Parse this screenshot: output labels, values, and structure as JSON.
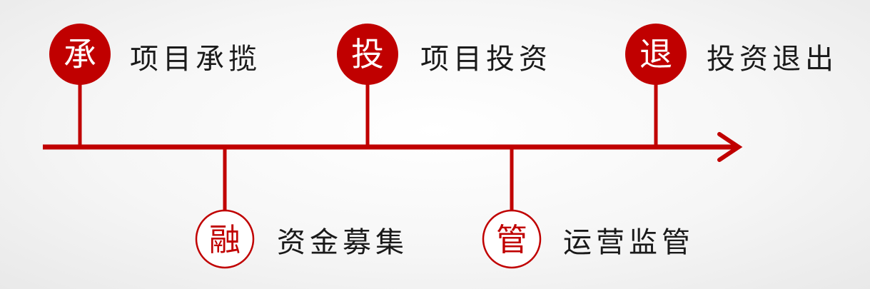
{
  "colors": {
    "accent": "#c00000",
    "text": "#1a1a1a"
  },
  "stages": [
    {
      "char": "承",
      "label": "项目承揽",
      "position": "above",
      "style": "filled"
    },
    {
      "char": "投",
      "label": "项目投资",
      "position": "above",
      "style": "filled"
    },
    {
      "char": "退",
      "label": "投资退出",
      "position": "above",
      "style": "filled"
    },
    {
      "char": "融",
      "label": "资金募集",
      "position": "below",
      "style": "outlined"
    },
    {
      "char": "管",
      "label": "运营监管",
      "position": "below",
      "style": "outlined"
    }
  ]
}
